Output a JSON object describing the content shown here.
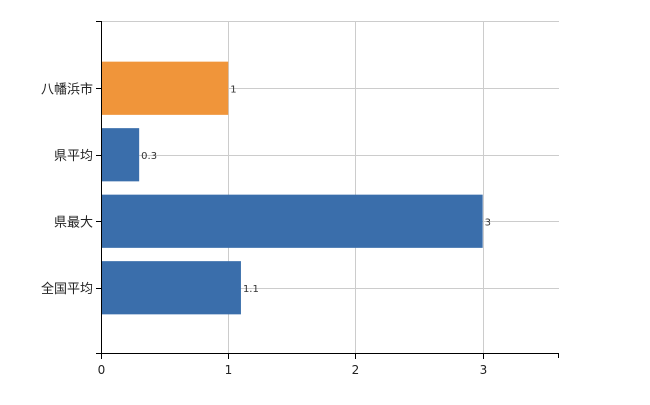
{
  "chart_data": {
    "type": "bar",
    "orientation": "horizontal",
    "categories": [
      "八幡浜市",
      "県平均",
      "県最大",
      "全国平均"
    ],
    "values": [
      1,
      0.3,
      3,
      1.1
    ],
    "data_labels": [
      "1",
      "0.3",
      "3",
      "1.1"
    ],
    "bar_colors": [
      "#f0953a",
      "#3a6eab",
      "#3a6eab",
      "#3a6eab"
    ],
    "highlight_color": "#f0953a",
    "base_color": "#3a6eab",
    "xlim": [
      0,
      3.6
    ],
    "xticks": [
      0,
      1,
      2,
      3
    ],
    "xtick_labels": [
      "0",
      "1",
      "2",
      "3"
    ],
    "grid": true,
    "title": "",
    "xlabel": "",
    "ylabel": ""
  }
}
